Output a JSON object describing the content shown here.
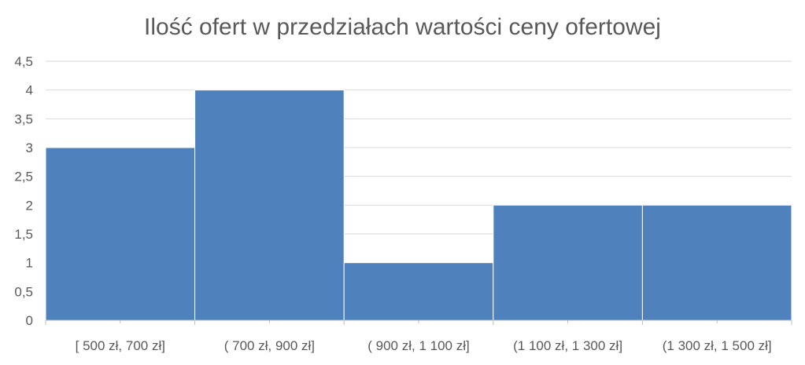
{
  "chart_data": {
    "type": "bar",
    "title": "Ilość ofert w przedziałach wartości ceny ofertowej",
    "xlabel": "",
    "ylabel": "",
    "categories": [
      "[ 500 zł,  700 zł]",
      "( 700 zł,  900 zł]",
      "( 900 zł, 1 100 zł]",
      "(1 100 zł, 1 300 zł]",
      "(1 300 zł, 1 500 zł]"
    ],
    "values": [
      3,
      4,
      1,
      2,
      2
    ],
    "ylim": [
      0,
      4.5
    ],
    "yticks": [
      "0",
      "0,5",
      "1",
      "1,5",
      "2",
      "2,5",
      "3",
      "3,5",
      "4",
      "4,5"
    ],
    "grid": true,
    "bar_color": "#4F81BD",
    "grid_color": "#d9d9d9",
    "axis_color": "#bfbfbf"
  }
}
